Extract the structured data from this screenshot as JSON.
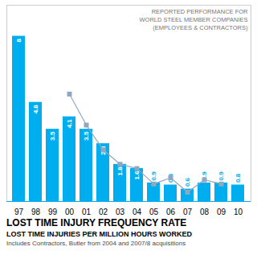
{
  "chart_data": {
    "type": "bar",
    "title": "LOST TIME INJURY FREQUENCY RATE",
    "subtitle": "LOST TIME INJURIES PER MILLION HOURS WORKED",
    "caption": "Includes Contractors, Butler from 2004 and 2007/8 acquisitions",
    "annotation": "REPORTED PERFORMANCE FOR\nWORLD STEEL MEMBER COMPANIES\n(EMPLOYEES & CONTRACTORS)",
    "categories": [
      "97",
      "98",
      "99",
      "00",
      "01",
      "02",
      "03",
      "04",
      "05",
      "06",
      "07",
      "08",
      "09",
      "10"
    ],
    "series": [
      {
        "type": "bar",
        "color": "#00AEEF",
        "data_labels": true,
        "values": [
          8,
          4.8,
          3.5,
          4.1,
          3.5,
          2.8,
          1.8,
          1.6,
          0.9,
          0.8,
          0.6,
          0.9,
          0.9,
          0.8
        ]
      },
      {
        "type": "line",
        "color": "#8fa8bf",
        "marker": "square",
        "values": [
          null,
          null,
          null,
          5.2,
          3.7,
          2.5,
          1.8,
          1.6,
          0.85,
          1.15,
          0.45,
          1.05,
          0.85,
          null
        ]
      }
    ],
    "ylim": [
      0,
      9.5
    ],
    "tick_labels": "x"
  }
}
